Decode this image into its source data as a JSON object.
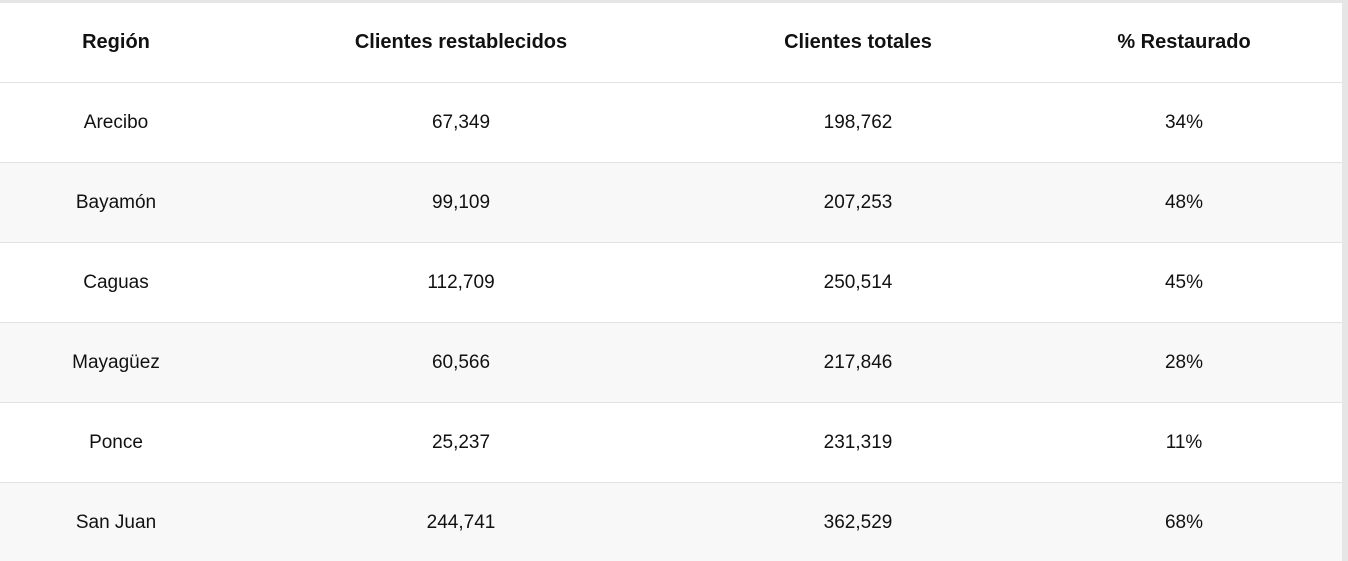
{
  "table": {
    "headers": [
      "Región",
      "Clientes restablecidos",
      "Clientes totales",
      "% Restaurado"
    ],
    "rows": [
      [
        "Arecibo",
        "67,349",
        "198,762",
        "34%"
      ],
      [
        "Bayamón",
        "99,109",
        "207,253",
        "48%"
      ],
      [
        "Caguas",
        "112,709",
        "250,514",
        "45%"
      ],
      [
        "Mayagüez",
        "60,566",
        "217,846",
        "28%"
      ],
      [
        "Ponce",
        "25,237",
        "231,319",
        "11%"
      ],
      [
        "San Juan",
        "244,741",
        "362,529",
        "68%"
      ]
    ]
  }
}
